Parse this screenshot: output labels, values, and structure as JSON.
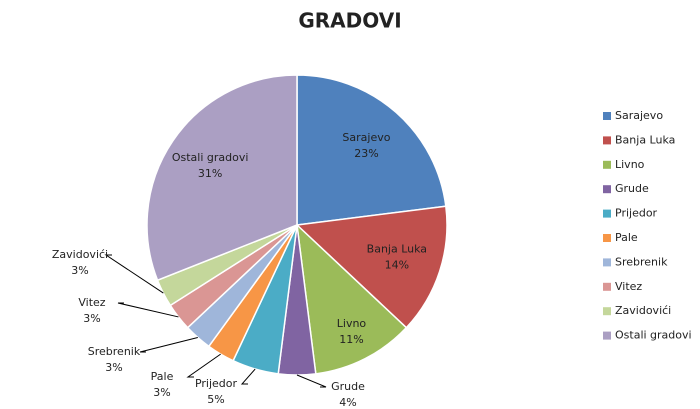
{
  "chart_data": {
    "type": "pie",
    "title": "GRADOVI",
    "categories": [
      "Sarajevo",
      "Banja Luka",
      "Livno",
      "Grude",
      "Prijedor",
      "Pale",
      "Srebrenik",
      "Vitez",
      "Zavidovići",
      "Ostali gradovi"
    ],
    "values": [
      23,
      14,
      11,
      4,
      5,
      3,
      3,
      3,
      3,
      31
    ],
    "value_labels": [
      "23%",
      "14%",
      "11%",
      "4%",
      "5%",
      "3%",
      "3%",
      "3%",
      "3%",
      "31%"
    ],
    "colors": [
      "#4f81bd",
      "#c0504d",
      "#9bbb59",
      "#8064a2",
      "#4bacc6",
      "#f79646",
      "#9fb6da",
      "#da9694",
      "#c4d79b",
      "#ab9fc3"
    ],
    "legend": "right"
  }
}
